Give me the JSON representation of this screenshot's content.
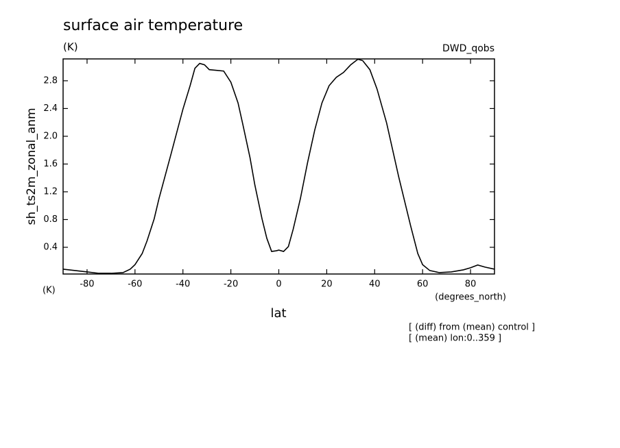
{
  "chart_data": {
    "type": "line",
    "title": "surface air temperature",
    "subtitle": "(K)",
    "dataset": "DWD_qobs",
    "y_label": "sh_ts2m_zonal_anm",
    "y_units": "(K)",
    "x_label": "lat",
    "x_units": "(degrees_north)",
    "notes": [
      "[ (diff) from (mean) control ]",
      "[ (mean) lon:0..359 ]"
    ],
    "xlim": [
      -90,
      90
    ],
    "xticks": [
      -80,
      -60,
      -40,
      -20,
      0,
      20,
      40,
      60,
      80
    ],
    "ylim": [
      0.015,
      3.115
    ],
    "yticks": [
      0.4,
      0.8,
      1.2,
      1.6,
      {
        "value": 2,
        "label": "2.0"
      },
      2.4,
      2.8
    ],
    "x": [
      -90,
      -85,
      -80,
      -75,
      -70,
      -65,
      -62,
      -60,
      -57,
      -55,
      -52,
      -50,
      -45,
      -40,
      -37,
      -35,
      -33,
      -31,
      -29,
      -26,
      -23,
      -20,
      -17,
      -15,
      -12,
      -10,
      -7,
      -5,
      -3,
      -1,
      0,
      2,
      4,
      6,
      9,
      12,
      15,
      18,
      21,
      24,
      27,
      30,
      33,
      35,
      38,
      41,
      45,
      50,
      55,
      58,
      60,
      63,
      67,
      72,
      77,
      80,
      83,
      86,
      90
    ],
    "series": [
      {
        "name": "sh_ts2m_zonal_anm",
        "color": "#000000",
        "values": [
          0.085,
          0.065,
          0.045,
          0.025,
          0.025,
          0.035,
          0.085,
          0.15,
          0.31,
          0.49,
          0.81,
          1.1,
          1.74,
          2.39,
          2.73,
          2.98,
          3.05,
          3.03,
          2.96,
          2.95,
          2.94,
          2.78,
          2.48,
          2.17,
          1.69,
          1.3,
          0.81,
          0.53,
          0.34,
          0.35,
          0.36,
          0.34,
          0.41,
          0.66,
          1.1,
          1.62,
          2.09,
          2.48,
          2.73,
          2.85,
          2.92,
          3.03,
          3.11,
          3.09,
          2.96,
          2.68,
          2.19,
          1.42,
          0.71,
          0.31,
          0.15,
          0.065,
          0.035,
          0.045,
          0.075,
          0.105,
          0.145,
          0.115,
          0.085
        ]
      }
    ]
  }
}
